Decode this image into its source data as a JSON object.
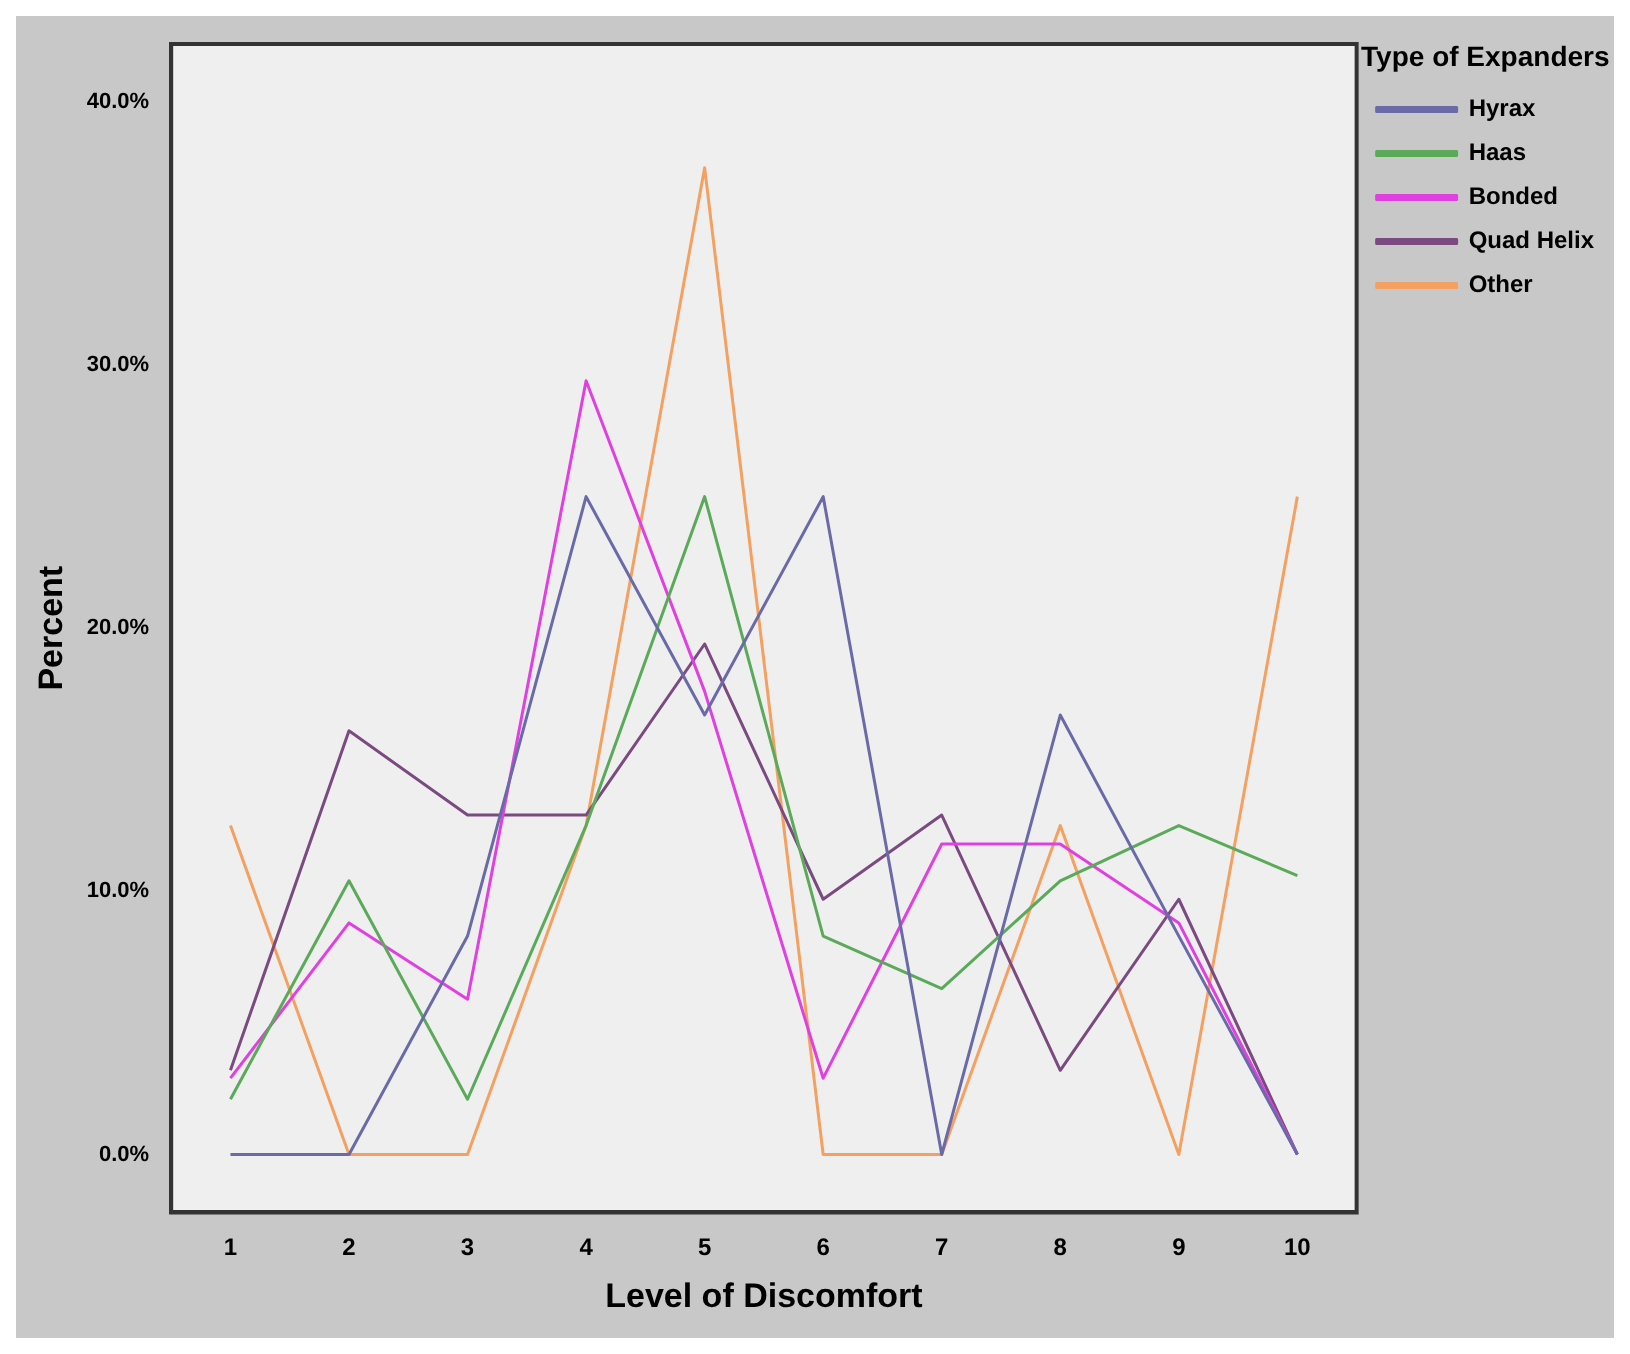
{
  "chart_data": {
    "type": "line",
    "xlabel": "Level of Discomfort",
    "ylabel": "Percent",
    "legend_title": "Type of Expanders",
    "categories": [
      "1",
      "2",
      "3",
      "4",
      "5",
      "6",
      "7",
      "8",
      "9",
      "10"
    ],
    "series": [
      {
        "name": "Hyrax",
        "color": "#6a6aa8",
        "values": [
          0,
          0,
          8.3,
          25,
          16.7,
          25,
          0,
          16.7,
          8.3,
          0
        ]
      },
      {
        "name": "Haas",
        "color": "#5aaa5a",
        "values": [
          2.1,
          10.4,
          2.1,
          12.5,
          25,
          8.3,
          6.3,
          10.4,
          12.5,
          10.6
        ]
      },
      {
        "name": "Bonded",
        "color": "#e040e0",
        "values": [
          2.9,
          8.8,
          5.9,
          29.4,
          17.6,
          2.9,
          11.8,
          11.8,
          8.8,
          0
        ]
      },
      {
        "name": "Quad Helix",
        "color": "#7a4a80",
        "values": [
          3.2,
          16.1,
          12.9,
          12.9,
          19.4,
          9.7,
          12.9,
          3.2,
          9.7,
          0
        ]
      },
      {
        "name": "Other",
        "color": "#f4a060",
        "values": [
          12.5,
          0,
          0,
          12.5,
          37.5,
          0,
          0,
          12.5,
          0,
          25
        ]
      }
    ],
    "ylim": [
      -2.2,
      42.2
    ],
    "yticks": [
      {
        "value": 0,
        "label": "0.0%"
      },
      {
        "value": 10,
        "label": "10.0%"
      },
      {
        "value": 20,
        "label": "20.0%"
      },
      {
        "value": 30,
        "label": "30.0%"
      },
      {
        "value": 40,
        "label": "40.0%"
      }
    ],
    "legend": "top right",
    "grid": false,
    "marker": "none",
    "line_style": "solid"
  }
}
